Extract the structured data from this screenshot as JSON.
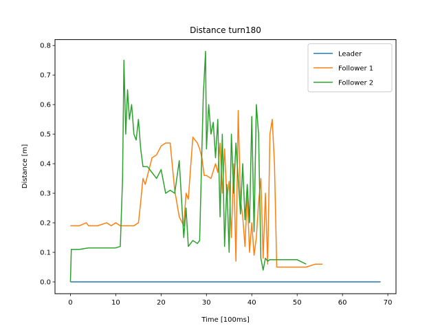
{
  "chart_data": {
    "type": "line",
    "title": "Distance turn180",
    "xlabel": "Time [100ms]",
    "ylabel": "Distance [m]",
    "xlim": [
      -3.4,
      71.8
    ],
    "ylim": [
      -0.04,
      0.82
    ],
    "xticks": [
      0,
      10,
      20,
      30,
      40,
      50,
      60,
      70
    ],
    "yticks": [
      0.0,
      0.1,
      0.2,
      0.3,
      0.4,
      0.5,
      0.6,
      0.7,
      0.8
    ],
    "xtick_labels": [
      "0",
      "10",
      "20",
      "30",
      "40",
      "50",
      "60",
      "70"
    ],
    "ytick_labels": [
      "0.0",
      "0.1",
      "0.2",
      "0.3",
      "0.4",
      "0.5",
      "0.6",
      "0.7",
      "0.8"
    ],
    "grid": false,
    "legend_position": "top-right",
    "series": [
      {
        "name": "Leader",
        "color": "#1f77b4",
        "x": [
          0,
          68.4
        ],
        "y": [
          0.0,
          0.0
        ]
      },
      {
        "name": "Follower 1",
        "color": "#ff7f0e",
        "x": [
          0,
          2,
          3.5,
          4,
          6,
          8,
          9,
          10,
          11,
          12,
          13,
          14,
          15,
          15.5,
          16,
          16.5,
          17,
          18,
          19,
          20,
          21,
          22,
          23,
          24,
          25,
          25.5,
          26,
          27,
          28,
          28.5,
          29,
          29.5,
          30,
          31,
          32,
          32.5,
          33,
          33.5,
          34,
          34.5,
          35,
          35.5,
          36,
          36.5,
          37,
          37.5,
          38,
          38.5,
          39,
          39.5,
          40,
          40.5,
          41,
          41.5,
          42,
          42.5,
          43,
          43.5,
          44,
          44.5,
          45,
          45.5,
          46,
          47,
          48,
          49,
          50,
          52,
          54,
          55.6
        ],
        "y": [
          0.19,
          0.19,
          0.2,
          0.19,
          0.19,
          0.2,
          0.19,
          0.2,
          0.19,
          0.19,
          0.19,
          0.19,
          0.2,
          0.27,
          0.35,
          0.33,
          0.36,
          0.42,
          0.43,
          0.46,
          0.47,
          0.47,
          0.31,
          0.22,
          0.19,
          0.3,
          0.28,
          0.49,
          0.47,
          0.45,
          0.42,
          0.36,
          0.36,
          0.35,
          0.4,
          0.37,
          0.47,
          0.3,
          0.45,
          0.28,
          0.34,
          0.15,
          0.4,
          0.07,
          0.58,
          0.28,
          0.22,
          0.12,
          0.3,
          0.1,
          0.2,
          0.09,
          0.15,
          0.27,
          0.35,
          0.08,
          0.3,
          0.06,
          0.5,
          0.55,
          0.4,
          0.05,
          0.05,
          0.05,
          0.05,
          0.05,
          0.05,
          0.05,
          0.06,
          0.06
        ]
      },
      {
        "name": "Follower 2",
        "color": "#2ca02c",
        "x": [
          0,
          0.2,
          2,
          4,
          6,
          8,
          10,
          11,
          11.5,
          11.8,
          12.2,
          12.6,
          13,
          13.5,
          14,
          14.5,
          15,
          15.5,
          16,
          17,
          18,
          19,
          20,
          20.5,
          21,
          22,
          23,
          24,
          25,
          25.5,
          26,
          27,
          28,
          28.5,
          29,
          29.3,
          29.8,
          30,
          30.5,
          31,
          31.5,
          32,
          32.5,
          33,
          33.5,
          34,
          34.5,
          35,
          35.5,
          36,
          36.5,
          37,
          37.5,
          38,
          38.5,
          39,
          39.5,
          40,
          40.5,
          41,
          41.5,
          42,
          42.5,
          43,
          43.5,
          44,
          46,
          48,
          50,
          52
        ],
        "y": [
          0.0,
          0.11,
          0.11,
          0.115,
          0.115,
          0.115,
          0.115,
          0.12,
          0.35,
          0.75,
          0.5,
          0.65,
          0.55,
          0.6,
          0.5,
          0.48,
          0.55,
          0.45,
          0.39,
          0.39,
          0.37,
          0.35,
          0.38,
          0.34,
          0.3,
          0.31,
          0.3,
          0.41,
          0.15,
          0.25,
          0.12,
          0.14,
          0.13,
          0.14,
          0.45,
          0.63,
          0.78,
          0.45,
          0.6,
          0.5,
          0.54,
          0.42,
          0.55,
          0.22,
          0.5,
          0.12,
          0.33,
          0.1,
          0.5,
          0.3,
          0.47,
          0.35,
          0.23,
          0.4,
          0.21,
          0.33,
          0.2,
          0.56,
          0.17,
          0.6,
          0.5,
          0.08,
          0.04,
          0.08,
          0.07,
          0.075,
          0.075,
          0.075,
          0.075,
          0.06
        ]
      }
    ]
  }
}
